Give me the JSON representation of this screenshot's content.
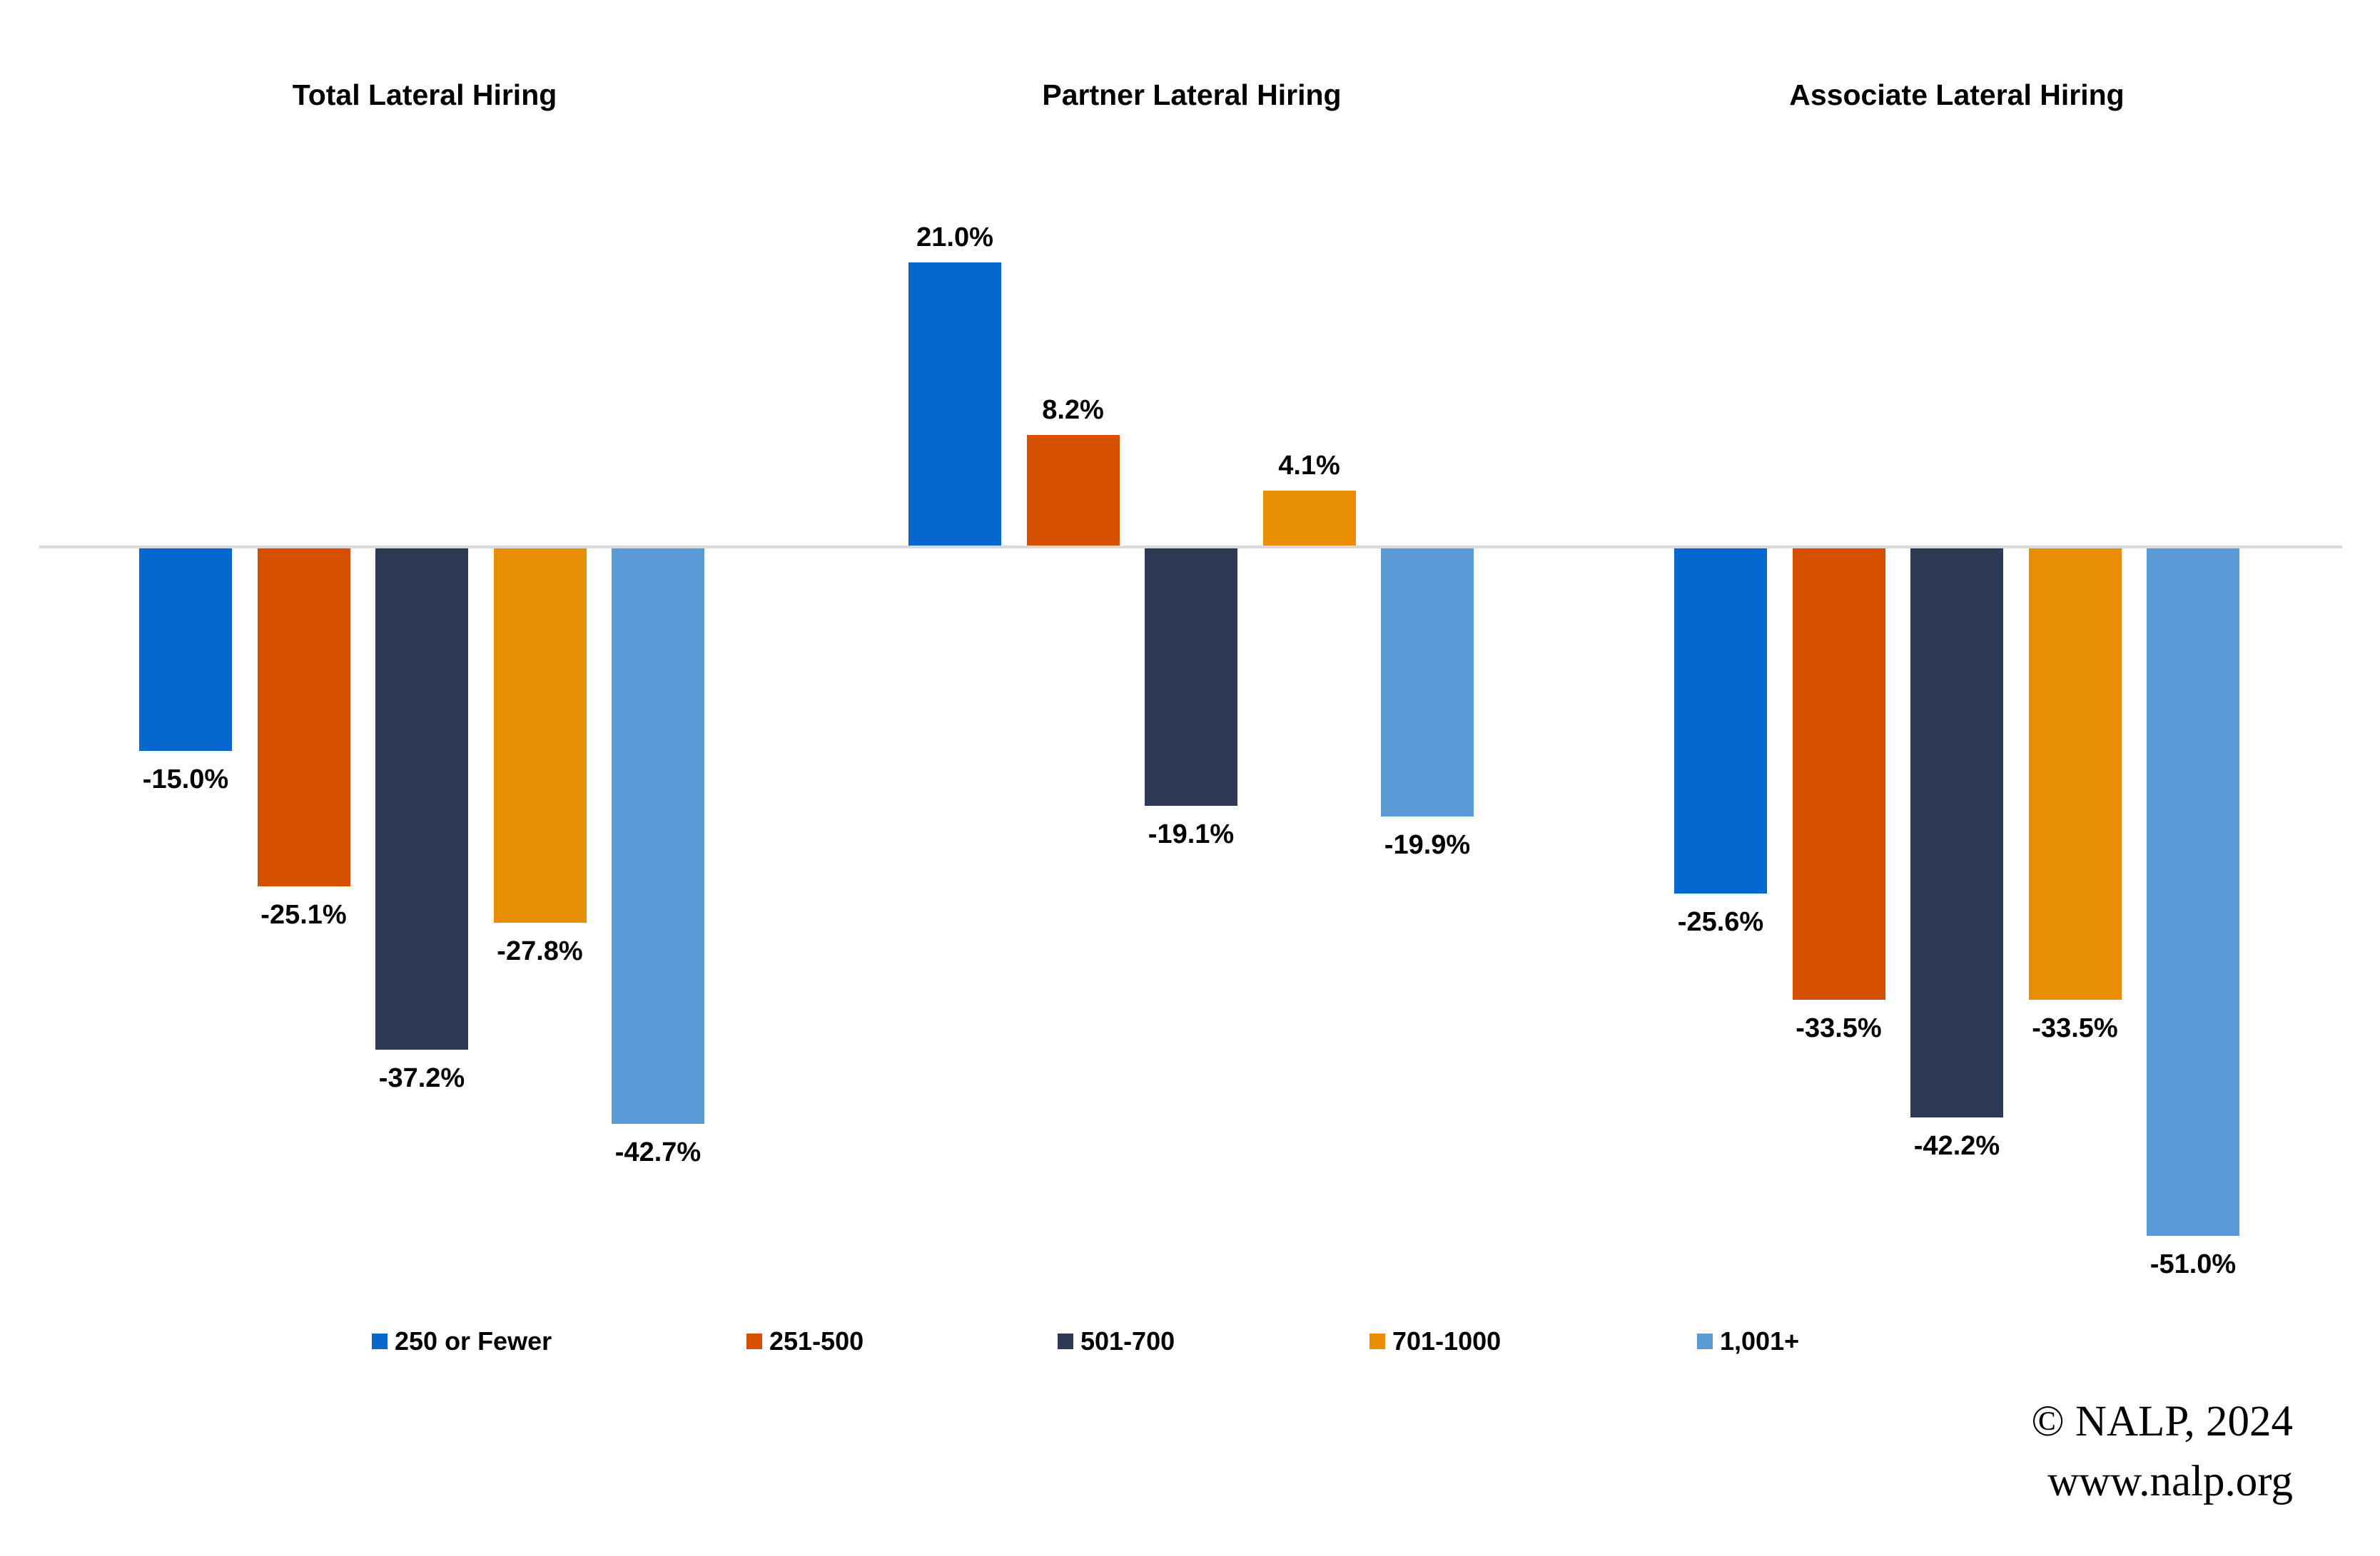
{
  "chart_data": {
    "type": "bar",
    "categories": [
      "Total Lateral Hiring",
      "Partner Lateral Hiring",
      "Associate Lateral Hiring"
    ],
    "series": [
      {
        "name": "250 or Fewer",
        "color": "#0667CC",
        "values": [
          -15.0,
          21.0,
          -25.6
        ]
      },
      {
        "name": "251-500",
        "color": "#D55000",
        "values": [
          -25.1,
          8.2,
          -33.5
        ]
      },
      {
        "name": "501-700",
        "color": "#2D3A56",
        "values": [
          -37.2,
          -19.1,
          -42.2
        ]
      },
      {
        "name": "701-1000",
        "color": "#E78F00",
        "values": [
          -27.8,
          4.1,
          -33.5
        ]
      },
      {
        "name": "1,001+",
        "color": "#5A9BD5",
        "values": [
          -42.7,
          -19.9,
          -51.0
        ]
      }
    ],
    "value_suffix": "%",
    "value_decimals": 1,
    "ylim": [
      -55,
      25
    ],
    "grid": false,
    "legend_position": "bottom",
    "data_labels": true
  },
  "colors": {
    "background": "#FFFFFF",
    "axis_line": "#D9D9D9",
    "text": "#000000"
  },
  "footer": {
    "copyright": "© NALP, 2024",
    "url": "www.nalp.org"
  }
}
